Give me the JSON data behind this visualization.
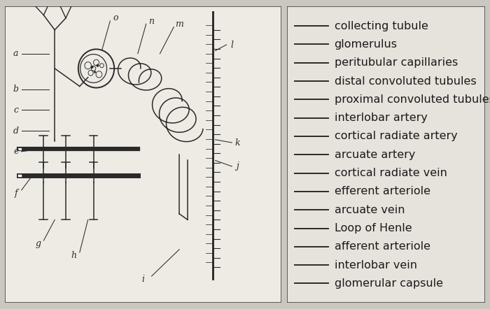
{
  "bg_color": "#cac6c0",
  "left_bg": "#eeebe5",
  "right_bg": "#e6e2dc",
  "border_color": "#444444",
  "line_color": "#2a2a2a",
  "text_color": "#1a1a1a",
  "right_items": [
    "collecting tubule",
    "glomerulus",
    "peritubular capillaries",
    "distal convoluted tubules",
    "proximal convoluted tubules",
    "interlobar artery",
    "cortical radiate artery",
    "arcuate artery",
    "cortical radiate vein",
    "efferent arteriole",
    "arcuate vein",
    "Loop of Henle",
    "afferent arteriole",
    "interlobar vein",
    "glomerular capsule"
  ],
  "font_size_items": 11.5
}
